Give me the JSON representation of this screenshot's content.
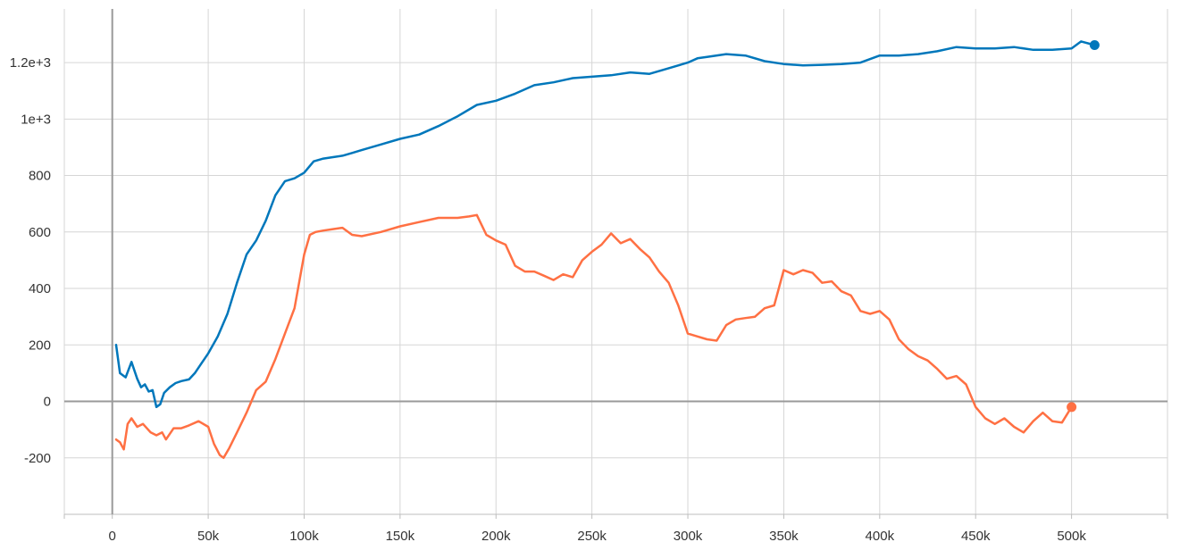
{
  "chart_data": {
    "type": "line",
    "title": "",
    "xlabel": "",
    "ylabel": "",
    "xlim": [
      -25000,
      550000
    ],
    "ylim": [
      -400,
      1390
    ],
    "x_ticks": [
      0,
      50000,
      100000,
      150000,
      200000,
      250000,
      300000,
      350000,
      400000,
      450000,
      500000
    ],
    "x_tick_labels": [
      "0",
      "50k",
      "100k",
      "150k",
      "200k",
      "250k",
      "300k",
      "350k",
      "400k",
      "450k",
      "500k"
    ],
    "y_ticks": [
      -200,
      0,
      200,
      400,
      600,
      800,
      1000,
      1200
    ],
    "y_tick_labels": [
      "-200",
      "0",
      "200",
      "400",
      "600",
      "800",
      "1e+3",
      "1.2e+3"
    ],
    "grid": true,
    "series": [
      {
        "color": "#0077bb",
        "end_marker": true,
        "x": [
          2000,
          4000,
          7000,
          10000,
          13000,
          15000,
          17000,
          19000,
          21000,
          23000,
          25000,
          27000,
          30000,
          33000,
          36000,
          40000,
          43000,
          46000,
          50000,
          55000,
          60000,
          65000,
          70000,
          75000,
          80000,
          85000,
          90000,
          95000,
          100000,
          105000,
          110000,
          115000,
          120000,
          125000,
          130000,
          140000,
          150000,
          160000,
          170000,
          180000,
          190000,
          200000,
          210000,
          220000,
          230000,
          240000,
          250000,
          260000,
          270000,
          280000,
          290000,
          300000,
          305000,
          310000,
          320000,
          330000,
          340000,
          350000,
          360000,
          370000,
          380000,
          390000,
          400000,
          410000,
          420000,
          430000,
          440000,
          450000,
          460000,
          470000,
          480000,
          490000,
          500000,
          505000,
          512000
        ],
        "y": [
          200,
          100,
          85,
          140,
          80,
          50,
          60,
          35,
          40,
          -20,
          -10,
          30,
          50,
          65,
          72,
          78,
          100,
          130,
          170,
          230,
          310,
          420,
          520,
          570,
          640,
          730,
          780,
          790,
          810,
          850,
          860,
          865,
          870,
          880,
          890,
          910,
          930,
          945,
          975,
          1010,
          1050,
          1065,
          1090,
          1120,
          1130,
          1145,
          1150,
          1155,
          1165,
          1160,
          1180,
          1200,
          1215,
          1220,
          1230,
          1225,
          1205,
          1195,
          1190,
          1192,
          1195,
          1200,
          1225,
          1225,
          1230,
          1240,
          1255,
          1250,
          1250,
          1255,
          1245,
          1245,
          1250,
          1275,
          1262
        ]
      },
      {
        "color": "#ff7043",
        "end_marker": true,
        "x": [
          2000,
          4000,
          6000,
          8000,
          10000,
          13000,
          16000,
          20000,
          23000,
          26000,
          28000,
          32000,
          36000,
          40000,
          45000,
          50000,
          53000,
          56000,
          58000,
          61000,
          65000,
          70000,
          75000,
          80000,
          85000,
          90000,
          95000,
          100000,
          103000,
          106000,
          110000,
          115000,
          120000,
          125000,
          130000,
          140000,
          150000,
          160000,
          170000,
          180000,
          186000,
          190000,
          195000,
          200000,
          205000,
          210000,
          215000,
          220000,
          225000,
          230000,
          235000,
          240000,
          245000,
          250000,
          255000,
          260000,
          265000,
          270000,
          275000,
          280000,
          285000,
          290000,
          295000,
          300000,
          305000,
          310000,
          315000,
          320000,
          325000,
          330000,
          335000,
          340000,
          345000,
          350000,
          355000,
          360000,
          365000,
          370000,
          375000,
          380000,
          385000,
          390000,
          395000,
          400000,
          405000,
          410000,
          415000,
          420000,
          425000,
          430000,
          435000,
          440000,
          445000,
          450000,
          455000,
          460000,
          465000,
          470000,
          475000,
          480000,
          485000,
          490000,
          495000,
          500000
        ],
        "y": [
          -135,
          -145,
          -170,
          -80,
          -60,
          -90,
          -80,
          -110,
          -120,
          -110,
          -135,
          -95,
          -95,
          -85,
          -70,
          -90,
          -150,
          -190,
          -200,
          -165,
          -110,
          -40,
          40,
          70,
          150,
          240,
          330,
          520,
          590,
          600,
          605,
          610,
          615,
          590,
          585,
          600,
          620,
          635,
          650,
          650,
          655,
          660,
          590,
          570,
          555,
          480,
          460,
          460,
          445,
          430,
          450,
          440,
          500,
          530,
          555,
          595,
          560,
          575,
          540,
          510,
          460,
          420,
          340,
          240,
          230,
          220,
          215,
          270,
          290,
          295,
          300,
          330,
          340,
          465,
          450,
          465,
          455,
          420,
          425,
          390,
          375,
          320,
          310,
          320,
          290,
          220,
          185,
          160,
          145,
          115,
          80,
          90,
          60,
          -20,
          -60,
          -80,
          -60,
          -90,
          -110,
          -70,
          -40,
          -70,
          -75,
          -20
        ]
      }
    ]
  }
}
